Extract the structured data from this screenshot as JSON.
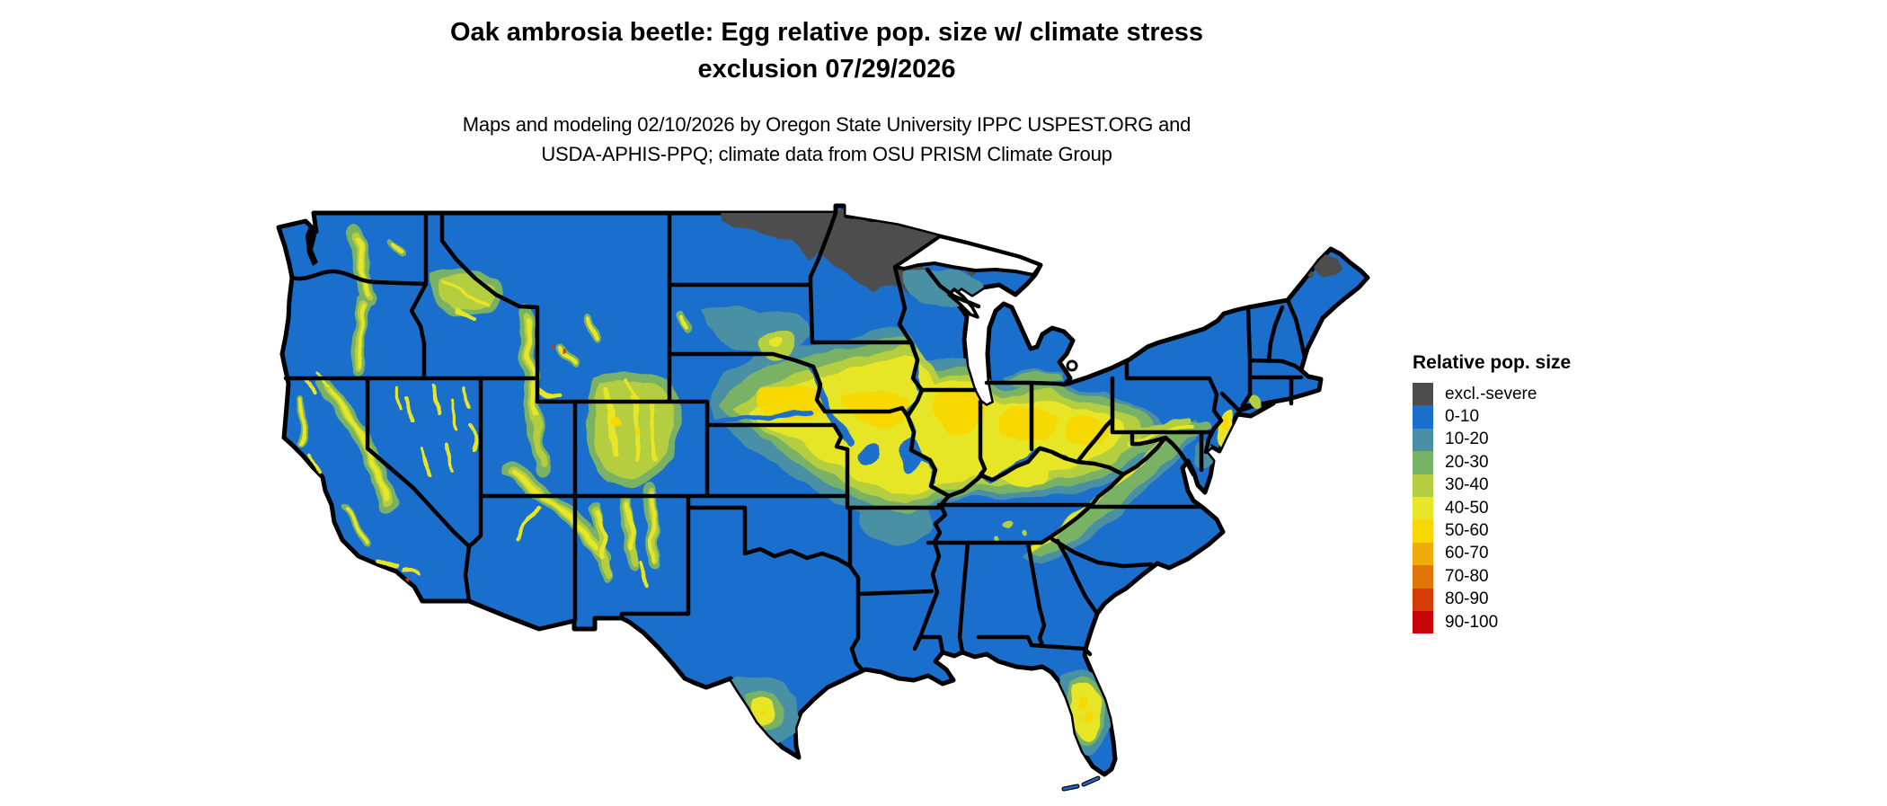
{
  "title": {
    "line1": "Oak ambrosia beetle: Egg relative pop. size w/ climate stress",
    "line2": "exclusion 07/29/2026"
  },
  "subtitle": {
    "line1": "Maps and modeling 02/10/2026 by Oregon State University IPPC USPEST.ORG and",
    "line2": "USDA-APHIS-PPQ; climate data from OSU PRISM Climate Group"
  },
  "legend": {
    "title": "Relative pop. size",
    "items": [
      {
        "label": "excl.-severe",
        "color": "#4D4D4D"
      },
      {
        "label": "0-10",
        "color": "#1B6FCC"
      },
      {
        "label": "10-20",
        "color": "#4A90A4"
      },
      {
        "label": "20-30",
        "color": "#79B165"
      },
      {
        "label": "30-40",
        "color": "#B5CE41"
      },
      {
        "label": "40-50",
        "color": "#E7E628"
      },
      {
        "label": "50-60",
        "color": "#F7D802"
      },
      {
        "label": "60-70",
        "color": "#EFAB07"
      },
      {
        "label": "70-80",
        "color": "#E07607"
      },
      {
        "label": "80-90",
        "color": "#D33D05"
      },
      {
        "label": "90-100",
        "color": "#C80508"
      }
    ]
  },
  "map": {
    "region_label": "Contiguous United States",
    "date_shown": "07/29/2026",
    "colors": {
      "base": "#1B6FCC",
      "excluded": "#4D4D4D",
      "c10": "#4A90A4",
      "c20": "#79B165",
      "c30": "#B5CE41",
      "c40": "#E7E628",
      "c50": "#F7D802",
      "c60": "#EFAB07",
      "c70": "#E07607",
      "c80": "#D33D05",
      "c90": "#C80508",
      "border": "#000000",
      "lake": "#FFFFFF"
    }
  }
}
